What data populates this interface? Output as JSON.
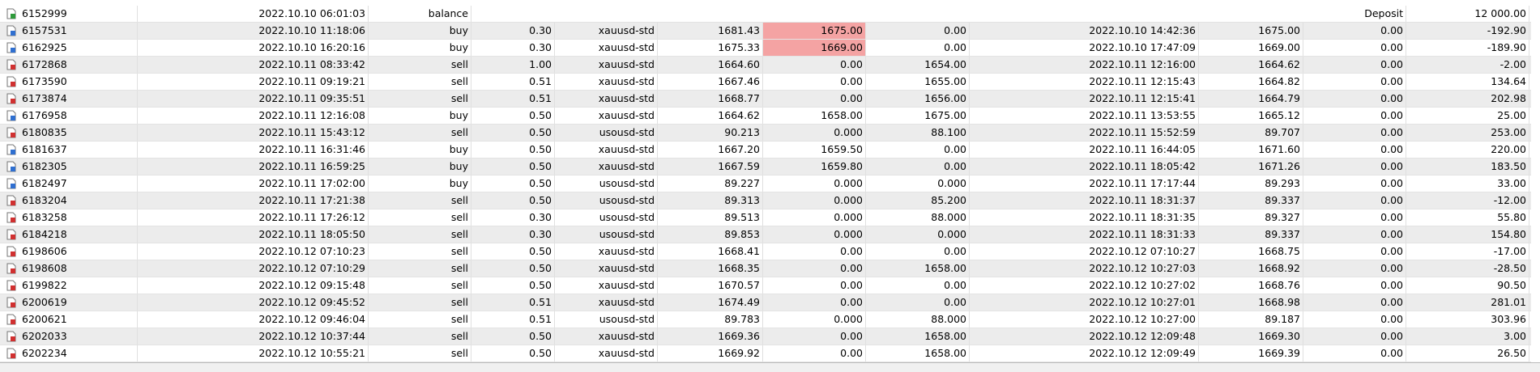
{
  "balance_row": {
    "ticket": "6152999",
    "time": "2022.10.10 06:01:03",
    "type": "balance",
    "comment": "Deposit",
    "profit": "12 000.00"
  },
  "rows": [
    [
      "6157531",
      "2022.10.10 11:18:06",
      "buy",
      "0.30",
      "xauusd-std",
      "1681.43",
      "1675.00",
      "0.00",
      "2022.10.10 14:42:36",
      "1675.00",
      "0.00",
      "-192.90"
    ],
    [
      "6162925",
      "2022.10.10 16:20:16",
      "buy",
      "0.30",
      "xauusd-std",
      "1675.33",
      "1669.00",
      "0.00",
      "2022.10.10 17:47:09",
      "1669.00",
      "0.00",
      "-189.90"
    ],
    [
      "6172868",
      "2022.10.11 08:33:42",
      "sell",
      "1.00",
      "xauusd-std",
      "1664.60",
      "0.00",
      "1654.00",
      "2022.10.11 12:16:00",
      "1664.62",
      "0.00",
      "-2.00"
    ],
    [
      "6173590",
      "2022.10.11 09:19:21",
      "sell",
      "0.51",
      "xauusd-std",
      "1667.46",
      "0.00",
      "1655.00",
      "2022.10.11 12:15:43",
      "1664.82",
      "0.00",
      "134.64"
    ],
    [
      "6173874",
      "2022.10.11 09:35:51",
      "sell",
      "0.51",
      "xauusd-std",
      "1668.77",
      "0.00",
      "1656.00",
      "2022.10.11 12:15:41",
      "1664.79",
      "0.00",
      "202.98"
    ],
    [
      "6176958",
      "2022.10.11 12:16:08",
      "buy",
      "0.50",
      "xauusd-std",
      "1664.62",
      "1658.00",
      "1675.00",
      "2022.10.11 13:53:55",
      "1665.12",
      "0.00",
      "25.00"
    ],
    [
      "6180835",
      "2022.10.11 15:43:12",
      "sell",
      "0.50",
      "usousd-std",
      "90.213",
      "0.000",
      "88.100",
      "2022.10.11 15:52:59",
      "89.707",
      "0.00",
      "253.00"
    ],
    [
      "6181637",
      "2022.10.11 16:31:46",
      "buy",
      "0.50",
      "xauusd-std",
      "1667.20",
      "1659.50",
      "0.00",
      "2022.10.11 16:44:05",
      "1671.60",
      "0.00",
      "220.00"
    ],
    [
      "6182305",
      "2022.10.11 16:59:25",
      "buy",
      "0.50",
      "xauusd-std",
      "1667.59",
      "1659.80",
      "0.00",
      "2022.10.11 18:05:42",
      "1671.26",
      "0.00",
      "183.50"
    ],
    [
      "6182497",
      "2022.10.11 17:02:00",
      "buy",
      "0.50",
      "usousd-std",
      "89.227",
      "0.000",
      "0.000",
      "2022.10.11 17:17:44",
      "89.293",
      "0.00",
      "33.00"
    ],
    [
      "6183204",
      "2022.10.11 17:21:38",
      "sell",
      "0.50",
      "usousd-std",
      "89.313",
      "0.000",
      "85.200",
      "2022.10.11 18:31:37",
      "89.337",
      "0.00",
      "-12.00"
    ],
    [
      "6183258",
      "2022.10.11 17:26:12",
      "sell",
      "0.30",
      "usousd-std",
      "89.513",
      "0.000",
      "88.000",
      "2022.10.11 18:31:35",
      "89.327",
      "0.00",
      "55.80"
    ],
    [
      "6184218",
      "2022.10.11 18:05:50",
      "sell",
      "0.30",
      "usousd-std",
      "89.853",
      "0.000",
      "0.000",
      "2022.10.11 18:31:33",
      "89.337",
      "0.00",
      "154.80"
    ],
    [
      "6198606",
      "2022.10.12 07:10:23",
      "sell",
      "0.50",
      "xauusd-std",
      "1668.41",
      "0.00",
      "0.00",
      "2022.10.12 07:10:27",
      "1668.75",
      "0.00",
      "-17.00"
    ],
    [
      "6198608",
      "2022.10.12 07:10:29",
      "sell",
      "0.50",
      "xauusd-std",
      "1668.35",
      "0.00",
      "1658.00",
      "2022.10.12 10:27:03",
      "1668.92",
      "0.00",
      "-28.50"
    ],
    [
      "6199822",
      "2022.10.12 09:15:48",
      "sell",
      "0.50",
      "xauusd-std",
      "1670.57",
      "0.00",
      "0.00",
      "2022.10.12 10:27:02",
      "1668.76",
      "0.00",
      "90.50"
    ],
    [
      "6200619",
      "2022.10.12 09:45:52",
      "sell",
      "0.51",
      "xauusd-std",
      "1674.49",
      "0.00",
      "0.00",
      "2022.10.12 10:27:01",
      "1668.98",
      "0.00",
      "281.01"
    ],
    [
      "6200621",
      "2022.10.12 09:46:04",
      "sell",
      "0.51",
      "usousd-std",
      "89.783",
      "0.000",
      "88.000",
      "2022.10.12 10:27:00",
      "89.187",
      "0.00",
      "303.96"
    ],
    [
      "6202033",
      "2022.10.12 10:37:44",
      "sell",
      "0.50",
      "xauusd-std",
      "1669.36",
      "0.00",
      "1658.00",
      "2022.10.12 12:09:48",
      "1669.30",
      "0.00",
      "3.00"
    ],
    [
      "6202234",
      "2022.10.12 10:55:21",
      "sell",
      "0.50",
      "xauusd-std",
      "1669.92",
      "0.00",
      "1658.00",
      "2022.10.12 12:09:49",
      "1669.39",
      "0.00",
      "26.50"
    ]
  ]
}
